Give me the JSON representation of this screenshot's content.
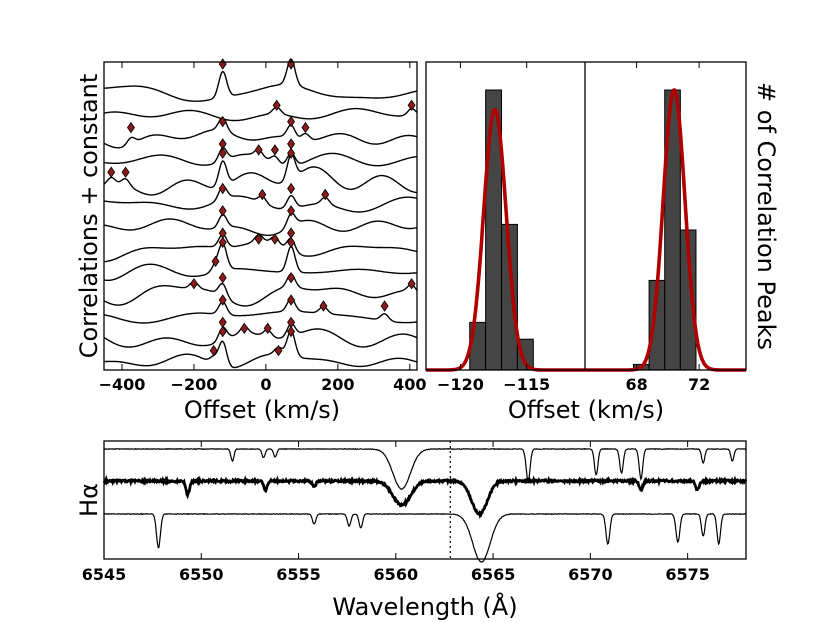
{
  "chart_data": [
    {
      "type": "line",
      "title": "",
      "xlabel": "Offset (km/s)",
      "ylabel": "Correlations + constant",
      "xlim": [
        -450,
        420
      ],
      "xticks": [
        -400,
        -200,
        0,
        200,
        400
      ],
      "n_traces": 13,
      "peak_marker_color": "#8b1a1a",
      "traces": [
        {
          "peaks": [
            -120,
            70
          ]
        },
        {
          "peaks": [
            30,
            405
          ]
        },
        {
          "peaks": [
            -375,
            -120,
            70,
            110
          ]
        },
        {
          "peaks": [
            -120,
            -20,
            25,
            70
          ]
        },
        {
          "peaks": [
            -430,
            -390,
            -120,
            70
          ]
        },
        {
          "peaks": [
            -120,
            -10,
            70,
            165
          ]
        },
        {
          "peaks": [
            -120,
            70
          ]
        },
        {
          "peaks": [
            -120,
            -20,
            25,
            70
          ]
        },
        {
          "peaks": [
            -140,
            -120,
            70
          ]
        },
        {
          "peaks": [
            -200,
            -120,
            70,
            405
          ]
        },
        {
          "peaks": [
            -120,
            70,
            160,
            330
          ]
        },
        {
          "peaks": [
            -120,
            -60,
            5,
            70
          ]
        },
        {
          "peaks": [
            -145,
            -120,
            35,
            70
          ]
        }
      ]
    },
    {
      "type": "bar",
      "title": "",
      "xlabel": "Offset (km/s)",
      "ylabel": "# of Correlation Peaks",
      "panels": [
        {
          "xlim": [
            -122.6,
            -110.6
          ],
          "xticks": [
            -120,
            -115
          ],
          "bin_width": 1.2,
          "bins": [
            {
              "x0": -119.3,
              "count": 1.7
            },
            {
              "x0": -118.1,
              "count": 10.0
            },
            {
              "x0": -116.9,
              "count": 5.2
            },
            {
              "x0": -115.7,
              "count": 1.1
            }
          ],
          "fit": {
            "model": "gaussian",
            "mu": -117.4,
            "sigma": 0.85,
            "amp": 9.3
          },
          "fit_color": "#b00000"
        },
        {
          "xlim": [
            64.7,
            75.0
          ],
          "xticks": [
            68,
            72
          ],
          "bin_width": 1.0,
          "bins": [
            {
              "x0": 67.8,
              "count": 0.2
            },
            {
              "x0": 68.8,
              "count": 3.2
            },
            {
              "x0": 69.8,
              "count": 10.0
            },
            {
              "x0": 70.8,
              "count": 5.0
            }
          ],
          "fit": {
            "model": "gaussian",
            "mu": 70.4,
            "sigma": 0.7,
            "amp": 10.0
          },
          "fit_color": "#b00000"
        }
      ],
      "ylim": [
        0,
        11
      ]
    },
    {
      "type": "line",
      "title": "",
      "xlabel": "Wavelength (Å)",
      "ylabel": "Hα",
      "xlim": [
        6545,
        6578
      ],
      "xticks": [
        6545,
        6550,
        6555,
        6560,
        6565,
        6570,
        6575
      ],
      "reference_line": 6562.8,
      "series": [
        {
          "name": "top",
          "line_width": 1.2,
          "lines": [
            {
              "center": 6560.3,
              "depth": 1.0,
              "width": 0.45
            },
            {
              "center": 6551.6,
              "depth": 0.3,
              "width": 0.08
            },
            {
              "center": 6553.2,
              "depth": 0.22,
              "width": 0.08
            },
            {
              "center": 6553.8,
              "depth": 0.2,
              "width": 0.08
            },
            {
              "center": 6566.8,
              "depth": 0.8,
              "width": 0.1
            },
            {
              "center": 6570.3,
              "depth": 0.65,
              "width": 0.09
            },
            {
              "center": 6571.6,
              "depth": 0.6,
              "width": 0.09
            },
            {
              "center": 6572.6,
              "depth": 0.75,
              "width": 0.09
            },
            {
              "center": 6575.8,
              "depth": 0.35,
              "width": 0.08
            },
            {
              "center": 6577.3,
              "depth": 0.3,
              "width": 0.08
            }
          ]
        },
        {
          "name": "middle",
          "line_width": 2.8,
          "lines": [
            {
              "center": 6560.3,
              "depth": 0.8,
              "width": 0.45
            },
            {
              "center": 6564.3,
              "depth": 1.1,
              "width": 0.4
            },
            {
              "center": 6549.3,
              "depth": 0.45,
              "width": 0.09
            },
            {
              "center": 6553.3,
              "depth": 0.3,
              "width": 0.09
            },
            {
              "center": 6555.8,
              "depth": 0.2,
              "width": 0.09
            },
            {
              "center": 6572.6,
              "depth": 0.3,
              "width": 0.09
            },
            {
              "center": 6575.5,
              "depth": 0.3,
              "width": 0.09
            }
          ]
        },
        {
          "name": "bottom",
          "line_width": 1.2,
          "lines": [
            {
              "center": 6564.4,
              "depth": 1.2,
              "width": 0.45
            },
            {
              "center": 6547.8,
              "depth": 0.85,
              "width": 0.1
            },
            {
              "center": 6555.8,
              "depth": 0.25,
              "width": 0.09
            },
            {
              "center": 6557.6,
              "depth": 0.3,
              "width": 0.09
            },
            {
              "center": 6558.2,
              "depth": 0.35,
              "width": 0.09
            },
            {
              "center": 6570.9,
              "depth": 0.75,
              "width": 0.1
            },
            {
              "center": 6574.5,
              "depth": 0.7,
              "width": 0.1
            },
            {
              "center": 6575.8,
              "depth": 0.55,
              "width": 0.09
            },
            {
              "center": 6576.6,
              "depth": 0.75,
              "width": 0.09
            }
          ]
        }
      ]
    }
  ]
}
